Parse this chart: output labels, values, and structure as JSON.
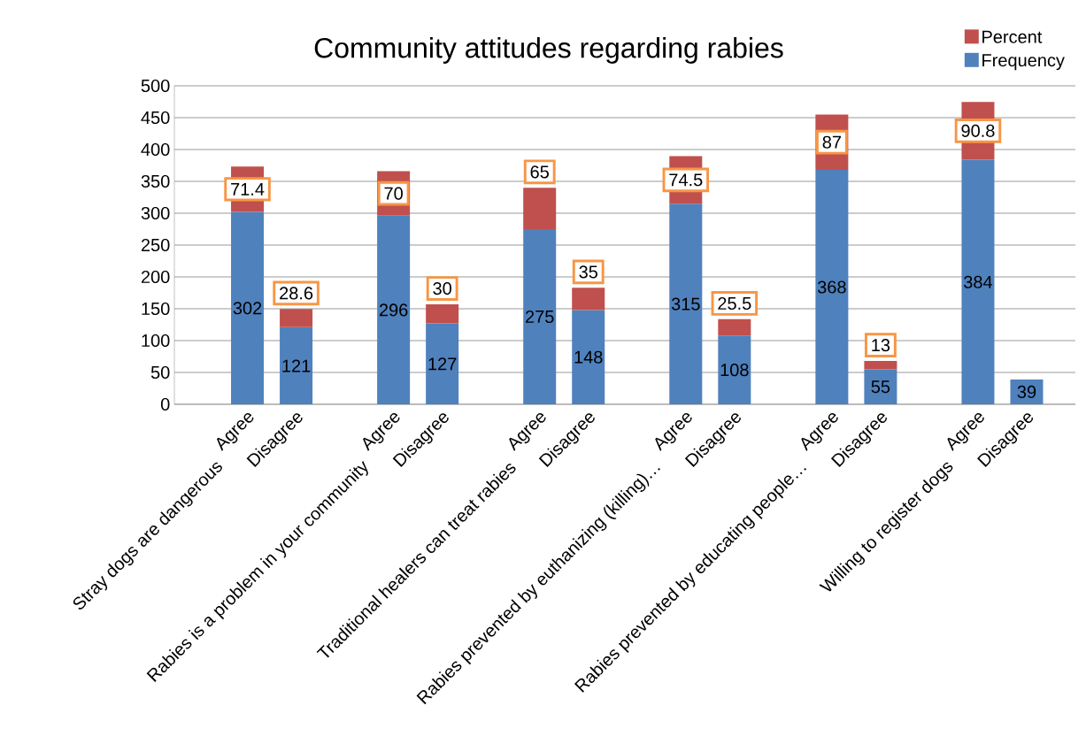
{
  "chart_data": {
    "type": "bar",
    "title": "Community attitudes regarding rabies",
    "categories": [
      "Agree",
      "Disagree",
      "Agree",
      "Disagree",
      "Agree",
      "Disagree",
      "Agree",
      "Disagree",
      "Agree",
      "Disagree",
      "Agree",
      "Disagree"
    ],
    "series": [
      {
        "name": "Frequency",
        "color": "#4f81bd",
        "values": [
          302,
          121,
          296,
          127,
          275,
          148,
          315,
          108,
          368,
          55,
          384,
          39
        ]
      },
      {
        "name": "Percent",
        "color": "#c0504d",
        "values": [
          71.4,
          28.6,
          70,
          30,
          65,
          35,
          74.5,
          25.5,
          87,
          13,
          90.8,
          null
        ]
      }
    ],
    "stacked": true,
    "ylim": [
      0,
      500
    ],
    "yticks": [
      0,
      50,
      100,
      150,
      200,
      250,
      300,
      350,
      400,
      450,
      500
    ],
    "grid": "y",
    "legend": "top right",
    "data_labels": true,
    "annotations": [
      "Stray dogs are dangerous",
      "Rabies is a problem in your community",
      "Traditional healers can treat rabies",
      "Rabies prevented by euthanizing (killing)…",
      "Rabies prevented by educating people…",
      "Willing to register dogs"
    ]
  }
}
